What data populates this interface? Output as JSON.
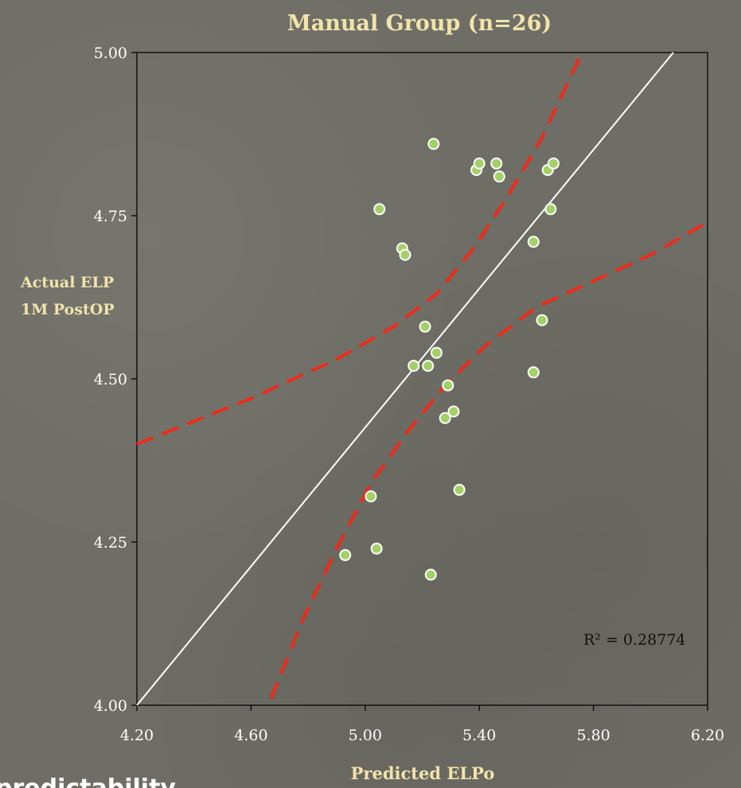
{
  "colors": {
    "background": "#6f6e66",
    "plot_background": "#6f6e66",
    "point_fill": "#a3d067",
    "point_stroke": "#ffffff",
    "regression_line": "#ffffff",
    "confidence_band": "#ee2b1a",
    "title_text": "#f1e3ab",
    "tick_text": "#ffffff"
  },
  "partial_text": "predictability",
  "chart_data": {
    "type": "scatter",
    "title": "Manual Group (n=26)",
    "xlabel": "Predicted ELPo",
    "ylabel_lines": [
      "Actual ELP",
      "1M PostOP"
    ],
    "xlim": [
      4.2,
      6.2
    ],
    "ylim": [
      4.0,
      5.0
    ],
    "x_ticks": [
      "4.20",
      "4.60",
      "5.00",
      "5.40",
      "5.80",
      "6.20"
    ],
    "y_ticks": [
      "4.00",
      "4.25",
      "4.50",
      "4.75",
      "5.00"
    ],
    "grid": false,
    "annotation": "R² = 0.28774",
    "points": [
      {
        "x": 5.24,
        "y": 4.86
      },
      {
        "x": 5.05,
        "y": 4.76
      },
      {
        "x": 5.39,
        "y": 4.82
      },
      {
        "x": 5.4,
        "y": 4.83
      },
      {
        "x": 5.46,
        "y": 4.83
      },
      {
        "x": 5.47,
        "y": 4.81
      },
      {
        "x": 5.64,
        "y": 4.82
      },
      {
        "x": 5.66,
        "y": 4.83
      },
      {
        "x": 5.65,
        "y": 4.76
      },
      {
        "x": 5.59,
        "y": 4.71
      },
      {
        "x": 5.13,
        "y": 4.7
      },
      {
        "x": 5.14,
        "y": 4.69
      },
      {
        "x": 5.21,
        "y": 4.58
      },
      {
        "x": 5.62,
        "y": 4.59
      },
      {
        "x": 5.25,
        "y": 4.54
      },
      {
        "x": 5.17,
        "y": 4.52
      },
      {
        "x": 5.22,
        "y": 4.52
      },
      {
        "x": 5.59,
        "y": 4.51
      },
      {
        "x": 5.29,
        "y": 4.49
      },
      {
        "x": 5.31,
        "y": 4.45
      },
      {
        "x": 5.28,
        "y": 4.44
      },
      {
        "x": 5.33,
        "y": 4.33
      },
      {
        "x": 5.02,
        "y": 4.32
      },
      {
        "x": 5.04,
        "y": 4.24
      },
      {
        "x": 4.93,
        "y": 4.23
      },
      {
        "x": 5.23,
        "y": 4.2
      }
    ],
    "regression_line": [
      {
        "x": 4.2,
        "y": 4.0
      },
      {
        "x": 6.08,
        "y": 5.0
      }
    ],
    "confidence_band_upper": [
      {
        "x": 4.2,
        "y": 4.4
      },
      {
        "x": 4.6,
        "y": 4.47
      },
      {
        "x": 4.9,
        "y": 4.53
      },
      {
        "x": 5.1,
        "y": 4.58
      },
      {
        "x": 5.25,
        "y": 4.63
      },
      {
        "x": 5.38,
        "y": 4.7
      },
      {
        "x": 5.5,
        "y": 4.78
      },
      {
        "x": 5.62,
        "y": 4.87
      },
      {
        "x": 5.76,
        "y": 5.0
      }
    ],
    "confidence_band_lower": [
      {
        "x": 4.67,
        "y": 4.01
      },
      {
        "x": 4.78,
        "y": 4.13
      },
      {
        "x": 4.9,
        "y": 4.24
      },
      {
        "x": 5.02,
        "y": 4.34
      },
      {
        "x": 5.15,
        "y": 4.42
      },
      {
        "x": 5.28,
        "y": 4.49
      },
      {
        "x": 5.42,
        "y": 4.55
      },
      {
        "x": 5.6,
        "y": 4.61
      },
      {
        "x": 5.8,
        "y": 4.65
      },
      {
        "x": 6.0,
        "y": 4.69
      },
      {
        "x": 6.2,
        "y": 4.74
      }
    ]
  }
}
